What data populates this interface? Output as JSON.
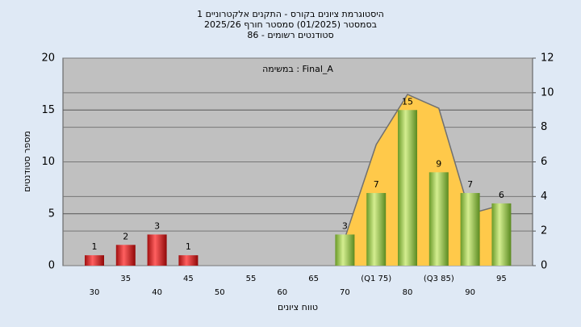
{
  "chart_data": {
    "type": "bar",
    "title": "היסטוגרמת ציונים בקורס - התקנים אלקטרוניים 1",
    "subtitle": "בסמסטר  (01/2025)  סמסטר חורף 2025/26",
    "subtitle2": "סטודנטים רשומים - 86",
    "annotation": "במשימה : Final_A",
    "x_label": "טווח ציונים",
    "y_label": "מספר סטודנטים",
    "categories": [
      "30",
      "35",
      "40",
      "45",
      "50",
      "55",
      "60",
      "65",
      "70",
      "(Q1 75)",
      "80",
      "(Q3 85)",
      "90",
      "95"
    ],
    "series": [
      {
        "values": [
          1,
          2,
          3,
          1,
          null,
          null,
          null,
          null,
          3,
          7,
          15,
          9,
          7,
          6
        ],
        "colors": [
          "#e02020",
          "#e02020",
          "#e02020",
          "#e02020",
          null,
          null,
          null,
          null,
          "#8cc040",
          "#8cc040",
          "#8cc040",
          "#8cc040",
          "#8cc040",
          "#8cc040"
        ]
      },
      {
        "axis": "y2",
        "color": "#ffc94a",
        "line_color": "#707070",
        "values": [
          null,
          null,
          null,
          null,
          null,
          null,
          null,
          null,
          1.6,
          7,
          9.9,
          9.1,
          3,
          3.5
        ]
      }
    ],
    "ylim": [
      0,
      20
    ],
    "yticks": [
      0,
      5,
      10,
      15,
      20
    ],
    "y2lim": [
      0,
      12
    ],
    "y2ticks": [
      0,
      2,
      4,
      6,
      8,
      10,
      12
    ],
    "grid": true
  }
}
